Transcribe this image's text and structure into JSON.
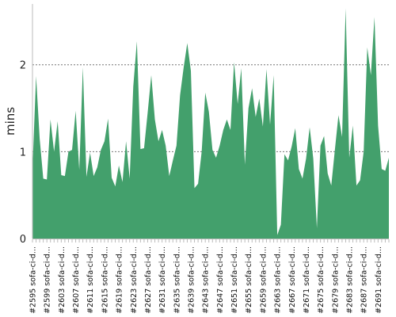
{
  "chart_data": {
    "type": "area",
    "title": "",
    "xlabel": "",
    "ylabel": "mins",
    "ylim": [
      0,
      2.7
    ],
    "yticks": [
      0,
      1,
      2
    ],
    "grid": true,
    "legend": "none",
    "fill_color": "#43a06c",
    "x_tick_labels": [
      "#2595 sofa-ci-d...",
      "#2599 sofa-ci-d...",
      "#2603 sofa-ci-d...",
      "#2607 sofa-ci-d...",
      "#2611 sofa-ci-d...",
      "#2615 sofa-ci-d...",
      "#2619 sofa-ci-d...",
      "#2623 sofa-ci-d...",
      "#2627 sofa-ci-d...",
      "#2631 sofa-ci-d...",
      "#2635 sofa-ci-d...",
      "#2639 sofa-ci-d...",
      "#2643 sofa-ci-d...",
      "#2647 sofa-ci-d...",
      "#2651 sofa-ci-d...",
      "#2655 sofa-ci-d...",
      "#2659 sofa-ci-d...",
      "#2663 sofa-ci-d...",
      "#2667 sofa-ci-d...",
      "#2671 sofa-ci-d...",
      "#2675 sofa-ci-d...",
      "#2679 sofa-ci-d...",
      "#2683 sofa-ci-d...",
      "#2687 sofa-ci-d...",
      "#2691 sofa-ci-d..."
    ],
    "x_tick_every": 4,
    "builds_start": 2595,
    "values": [
      0.8,
      1.87,
      1.15,
      0.69,
      0.68,
      1.37,
      1.0,
      1.35,
      0.73,
      0.72,
      1.0,
      1.02,
      1.47,
      0.79,
      1.97,
      0.71,
      0.99,
      0.72,
      0.82,
      1.02,
      1.12,
      1.38,
      0.7,
      0.6,
      0.84,
      0.65,
      1.12,
      0.69,
      1.75,
      2.27,
      1.03,
      1.04,
      1.45,
      1.88,
      1.37,
      1.12,
      1.25,
      1.07,
      0.72,
      0.9,
      1.07,
      1.65,
      1.97,
      2.25,
      1.93,
      0.58,
      0.63,
      1.0,
      1.68,
      1.46,
      1.02,
      0.93,
      1.07,
      1.25,
      1.37,
      1.25,
      2.03,
      1.55,
      1.96,
      0.85,
      1.5,
      1.73,
      1.4,
      1.61,
      1.29,
      1.95,
      1.31,
      1.88,
      0.04,
      0.16,
      0.97,
      0.9,
      1.06,
      1.27,
      0.8,
      0.69,
      0.92,
      1.28,
      0.92,
      0.12,
      1.07,
      1.18,
      0.75,
      0.61,
      1.02,
      1.42,
      1.17,
      2.65,
      0.93,
      1.3,
      0.61,
      0.67,
      1.0,
      2.2,
      1.88,
      2.55,
      1.3,
      0.8,
      0.78,
      0.93
    ]
  }
}
